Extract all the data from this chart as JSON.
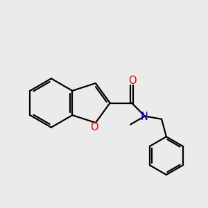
{
  "background_color": "#ebebeb",
  "bond_color": "#000000",
  "O_color": "#dd0000",
  "N_color": "#0000cc",
  "figsize": [
    3.0,
    3.0
  ],
  "dpi": 100,
  "lw": 1.6,
  "fs": 10.5,
  "xlim": [
    0,
    10
  ],
  "ylim": [
    0,
    10
  ]
}
